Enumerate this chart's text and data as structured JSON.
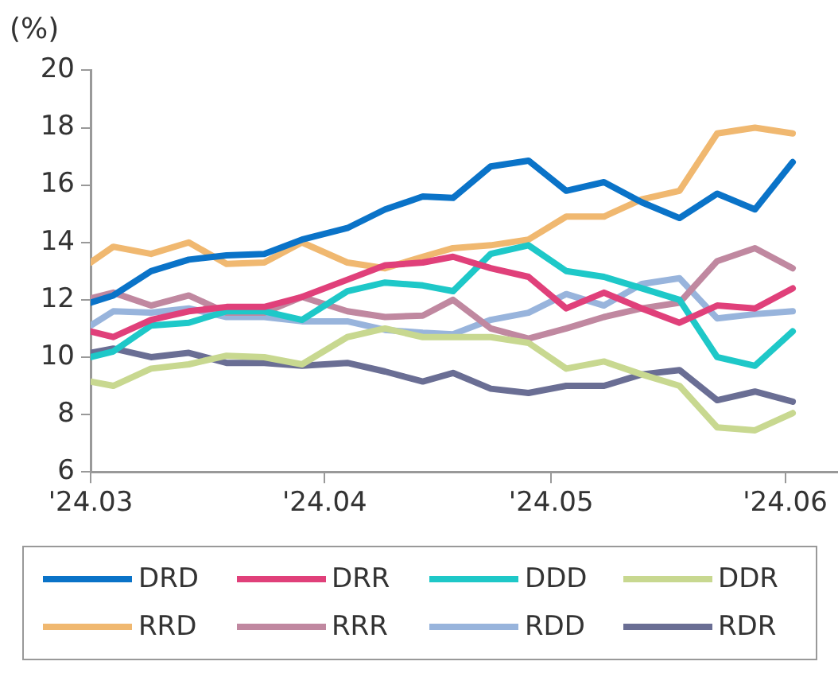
{
  "chart_data": {
    "type": "line",
    "ylabel": "(%)",
    "x": [
      "2024-03-01",
      "2024-03-04",
      "2024-03-09",
      "2024-03-14",
      "2024-03-19",
      "2024-03-24",
      "2024-03-29",
      "2024-04-04",
      "2024-04-09",
      "2024-04-14",
      "2024-04-18",
      "2024-04-23",
      "2024-04-28",
      "2024-05-03",
      "2024-05-08",
      "2024-05-13",
      "2024-05-18",
      "2024-05-23",
      "2024-05-28",
      "2024-06-02"
    ],
    "xlim": [
      "2024-03-01",
      "2024-06-08"
    ],
    "xticks": [
      {
        "value": "2024-03-01",
        "label": "'24.03"
      },
      {
        "value": "2024-04-01",
        "label": "'24.04"
      },
      {
        "value": "2024-05-01",
        "label": "'24.05"
      },
      {
        "value": "2024-06-01",
        "label": "'24.06"
      }
    ],
    "ylim": [
      6,
      20
    ],
    "yticks": [
      6,
      8,
      10,
      12,
      14,
      16,
      18,
      20
    ],
    "grid": false,
    "legend": "bottom",
    "marker": "none",
    "line_style": "solid",
    "series": [
      {
        "name": "DRD",
        "color": "#0a73c8",
        "values": [
          11.9,
          12.15,
          13.0,
          13.4,
          13.55,
          13.6,
          14.1,
          14.5,
          15.15,
          15.6,
          15.55,
          16.65,
          16.85,
          15.8,
          16.1,
          15.4,
          14.85,
          15.7,
          15.15,
          16.8
        ]
      },
      {
        "name": "DRR",
        "color": "#e0407a",
        "values": [
          10.9,
          10.7,
          11.3,
          11.6,
          11.75,
          11.75,
          12.1,
          12.7,
          13.2,
          13.3,
          13.5,
          13.1,
          12.8,
          11.7,
          12.25,
          11.7,
          11.2,
          11.8,
          11.7,
          12.4
        ]
      },
      {
        "name": "DDD",
        "color": "#1ec8c8",
        "values": [
          10.0,
          10.2,
          11.1,
          11.2,
          11.6,
          11.6,
          11.3,
          12.3,
          12.6,
          12.5,
          12.3,
          13.6,
          13.9,
          13.0,
          12.8,
          12.4,
          12.0,
          10.0,
          9.7,
          10.9
        ]
      },
      {
        "name": "DDR",
        "color": "#c8d890",
        "values": [
          9.15,
          9.0,
          9.6,
          9.75,
          10.05,
          10.0,
          9.75,
          10.7,
          11.0,
          10.7,
          10.7,
          10.7,
          10.5,
          9.6,
          9.85,
          9.4,
          9.0,
          7.55,
          7.45,
          8.05
        ]
      },
      {
        "name": "RRD",
        "color": "#f0b870",
        "values": [
          13.3,
          13.85,
          13.6,
          14.0,
          13.25,
          13.3,
          14.0,
          13.3,
          13.1,
          13.5,
          13.8,
          13.9,
          14.1,
          14.9,
          14.9,
          15.5,
          15.8,
          17.8,
          18.0,
          17.8
        ]
      },
      {
        "name": "RRR",
        "color": "#c088a0",
        "values": [
          12.05,
          12.25,
          11.8,
          12.15,
          11.55,
          11.55,
          12.1,
          11.6,
          11.4,
          11.45,
          12.0,
          11.0,
          10.65,
          11.0,
          11.4,
          11.7,
          11.9,
          13.35,
          13.8,
          13.1
        ]
      },
      {
        "name": "RDD",
        "color": "#98b4dc",
        "values": [
          11.1,
          11.6,
          11.55,
          11.7,
          11.4,
          11.4,
          11.25,
          11.25,
          10.95,
          10.85,
          10.8,
          11.3,
          11.55,
          12.2,
          11.8,
          12.55,
          12.75,
          11.35,
          11.5,
          11.6
        ]
      },
      {
        "name": "RDR",
        "color": "#6a6e94",
        "values": [
          10.15,
          10.3,
          10.0,
          10.15,
          9.8,
          9.8,
          9.7,
          9.8,
          9.5,
          9.15,
          9.45,
          8.9,
          8.75,
          9.0,
          9.0,
          9.4,
          9.55,
          8.5,
          8.8,
          8.45
        ]
      }
    ]
  }
}
